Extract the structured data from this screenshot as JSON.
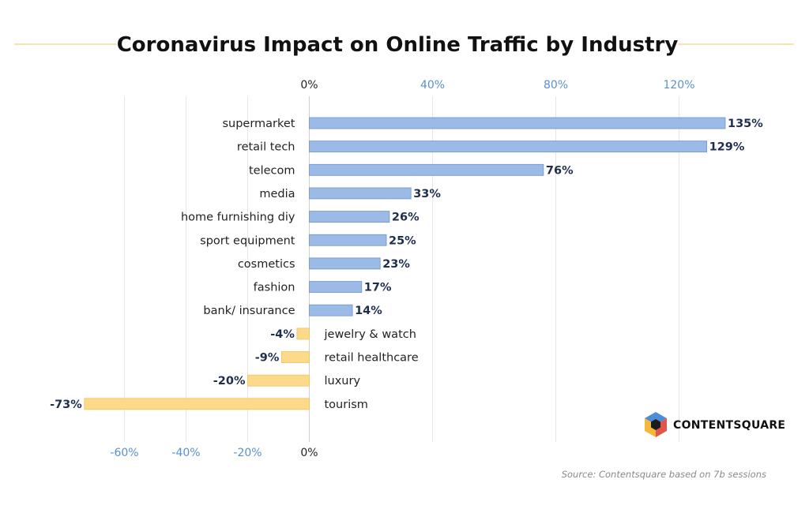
{
  "chart_data": {
    "type": "bar",
    "orientation": "horizontal",
    "title": "Coronavirus Impact on Online Traffic by Industry",
    "categories": [
      "supermarket",
      "retail tech",
      "telecom",
      "media",
      "home furnishing diy",
      "sport equipment",
      "cosmetics",
      "fashion",
      "bank/ insurance",
      "jewelry & watch",
      "retail healthcare",
      "luxury",
      "tourism"
    ],
    "values": [
      135,
      129,
      76,
      33,
      26,
      25,
      23,
      17,
      14,
      -4,
      -9,
      -20,
      -73
    ],
    "value_labels": [
      "135%",
      "129%",
      "76%",
      "33%",
      "26%",
      "25%",
      "23%",
      "17%",
      "14%",
      "-4%",
      "-9%",
      "-20%",
      "-73%"
    ],
    "top_ticks": [
      0,
      40,
      80,
      120
    ],
    "top_tick_labels": [
      "0%",
      "40%",
      "80%",
      "120%"
    ],
    "bottom_ticks": [
      -60,
      -40,
      -20,
      0
    ],
    "bottom_tick_labels": [
      "-60%",
      "-40%",
      "-20%",
      "0%"
    ],
    "positive_color": "#9bbae6",
    "positive_border": "#6f95cf",
    "negative_color": "#fdd98a",
    "negative_border": "#f3c25a",
    "grid": true
  },
  "brand": {
    "name": "CONTENTSQUARE",
    "logo_icon": "contentsquare-hexagon-logo"
  },
  "source": "Source: Contentsquare based on 7b sessions"
}
